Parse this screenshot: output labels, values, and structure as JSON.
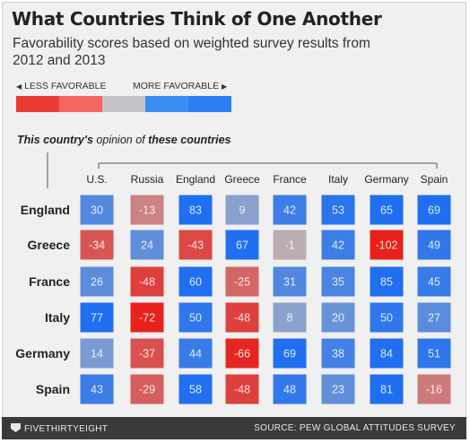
{
  "header": {
    "title": "What Countries Think of One Another",
    "subtitle": "Favorability scores based on weighted survey results from 2012 and 2013"
  },
  "legend": {
    "less_label": "LESS FAVORABLE",
    "more_label": "MORE FAVORABLE",
    "left_arrow_icon": "left-triangle-icon",
    "right_arrow_icon": "right-triangle-icon",
    "colors": [
      "#ec3a35",
      "#f36463",
      "#c4c4c8",
      "#3d8ef2",
      "#2f7ef0"
    ]
  },
  "axis_caption": {
    "prefix": "This country's",
    "middle": " opinion of ",
    "suffix": "these countries"
  },
  "chart_data": {
    "type": "heatmap",
    "columns": [
      "U.S.",
      "Russia",
      "England",
      "Greece",
      "France",
      "Italy",
      "Germany",
      "Spain"
    ],
    "rows": [
      "England",
      "Greece",
      "France",
      "Italy",
      "Germany",
      "Spain"
    ],
    "values": [
      [
        30,
        -13,
        83,
        9,
        42,
        53,
        65,
        69
      ],
      [
        -34,
        24,
        -43,
        67,
        -1,
        42,
        -102,
        49
      ],
      [
        26,
        -48,
        60,
        -25,
        31,
        35,
        85,
        45
      ],
      [
        77,
        -72,
        50,
        -48,
        8,
        20,
        50,
        27
      ],
      [
        14,
        -37,
        44,
        -66,
        69,
        38,
        84,
        51
      ],
      [
        43,
        -29,
        58,
        -48,
        48,
        23,
        81,
        -16
      ]
    ],
    "color_scale": {
      "negative_strong": "#e8211c",
      "neutral": "#b9b9bd",
      "positive_strong": "#1f6ff0"
    }
  },
  "footer": {
    "brand": "FIVETHIRTYEIGHT",
    "brand_icon": "fivethirtyeight-shield-icon",
    "source": "SOURCE: PEW GLOBAL ATTITUDES SURVEY"
  }
}
